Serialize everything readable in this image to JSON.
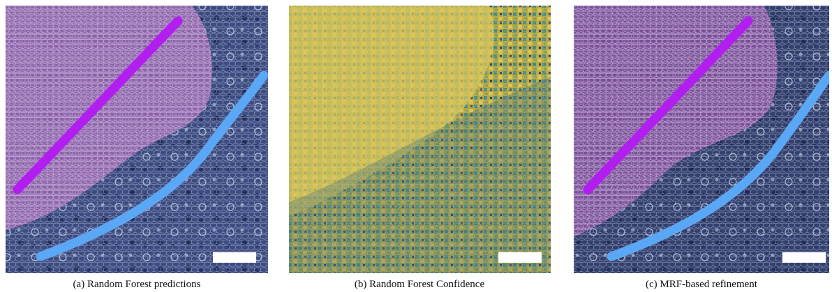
{
  "figure": {
    "panels": [
      {
        "caption": "(a) Random Forest predictions"
      },
      {
        "caption": "(b) Random Forest Confidence"
      },
      {
        "caption": "(c) MRF-based refinement"
      }
    ]
  }
}
